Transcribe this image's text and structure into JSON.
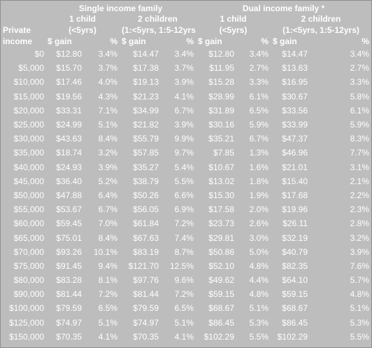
{
  "header": {
    "group_single": "Single income family",
    "group_dual": "Dual income family *",
    "child1_line1": "1 child",
    "child1_line2": "(<5yrs)",
    "child2_line1": "2 children",
    "child2_line2_single": "(1:<5yrs, 1:5-12yrs",
    "child2_line2_dual": "(1:<5yrs, 1:5-12yrs)",
    "income_line1": "Private",
    "income_line2": "income",
    "gain": "$ gain",
    "pct": "%"
  },
  "rows": [
    [
      "$0",
      "$12.80",
      "3.4%",
      "$14.47",
      "3.4%",
      "$12.80",
      "3.4%",
      "$14.47",
      "3.4%"
    ],
    [
      "$5,000",
      "$15.70",
      "3.7%",
      "$17.38",
      "3.7%",
      "$11.95",
      "2.7%",
      "$13.63",
      "2.7%"
    ],
    [
      "$10,000",
      "$17.46",
      "4.0%",
      "$19.13",
      "3.9%",
      "$15.28",
      "3.3%",
      "$16.95",
      "3.3%"
    ],
    [
      "$15,000",
      "$19.56",
      "4.3%",
      "$21.23",
      "4.1%",
      "$28.99",
      "6.1%",
      "$30.67",
      "5.8%"
    ],
    [
      "$20,000",
      "$33.31",
      "7.1%",
      "$34.99",
      "6.7%",
      "$31.89",
      "6.5%",
      "$33.56",
      "6.1%"
    ],
    [
      "$25,000",
      "$24.99",
      "5.1%",
      "$21.82",
      "3.9%",
      "$30.16",
      "5.9%",
      "$33.99",
      "5.9%"
    ],
    [
      "$30,000",
      "$43.63",
      "8.4%",
      "$55.79",
      "9.9%",
      "$35.21",
      "6.7%",
      "$47.37",
      "8.3%"
    ],
    [
      "$35,000",
      "$18.74",
      "3.2%",
      "$57.85",
      "9.7%",
      "$7.85",
      "1.3%",
      "$46.96",
      "7.7%"
    ],
    [
      "$40,000",
      "$24.93",
      "3.9%",
      "$35.27",
      "5.4%",
      "$10.67",
      "1.6%",
      "$21.01",
      "3.1%"
    ],
    [
      "$45,000",
      "$36.40",
      "5.2%",
      "$38.79",
      "5.5%",
      "$13.02",
      "1.8%",
      "$15.40",
      "2.1%"
    ],
    [
      "$50,000",
      "$47.88",
      "6.4%",
      "$50.26",
      "6.6%",
      "$15.30",
      "1.9%",
      "$17.68",
      "2.2%"
    ],
    [
      "$55,000",
      "$53.67",
      "6.7%",
      "$56.05",
      "6.9%",
      "$17.58",
      "2.0%",
      "$19.96",
      "2.3%"
    ],
    [
      "$60,000",
      "$59.45",
      "7.0%",
      "$61.84",
      "7.2%",
      "$23.73",
      "2.6%",
      "$26.11",
      "2.8%"
    ],
    [
      "$65,000",
      "$75.01",
      "8.4%",
      "$67.63",
      "7.4%",
      "$29.81",
      "3.0%",
      "$32.19",
      "3.2%"
    ],
    [
      "$70,000",
      "$93.26",
      "10.1%",
      "$83.19",
      "8.7%",
      "$50.86",
      "5.0%",
      "$40.79",
      "3.9%"
    ],
    [
      "$75,000",
      "$91.45",
      "9.4%",
      "$121.70",
      "12.5%",
      "$52.10",
      "4.8%",
      "$82.35",
      "7.6%"
    ],
    [
      "$80,000",
      "$83.28",
      "8.1%",
      "$97.76",
      "9.6%",
      "$49.62",
      "4.4%",
      "$64.10",
      "5.7%"
    ],
    [
      "$90,000",
      "$81.44",
      "7.2%",
      "$81.44",
      "7.2%",
      "$59.15",
      "4.8%",
      "$59.15",
      "4.8%"
    ],
    [
      "$100,000",
      "$79.59",
      "6.5%",
      "$79.59",
      "6.5%",
      "$68.67",
      "5.1%",
      "$68.67",
      "5.1%"
    ],
    [
      "$125,000",
      "$74.97",
      "5.1%",
      "$74.97",
      "5.1%",
      "$86.45",
      "5.3%",
      "$86.45",
      "5.3%"
    ],
    [
      "$150,000",
      "$70.35",
      "4.1%",
      "$70.35",
      "4.1%",
      "$102.29",
      "5.5%",
      "$102.29",
      "5.5%"
    ]
  ]
}
